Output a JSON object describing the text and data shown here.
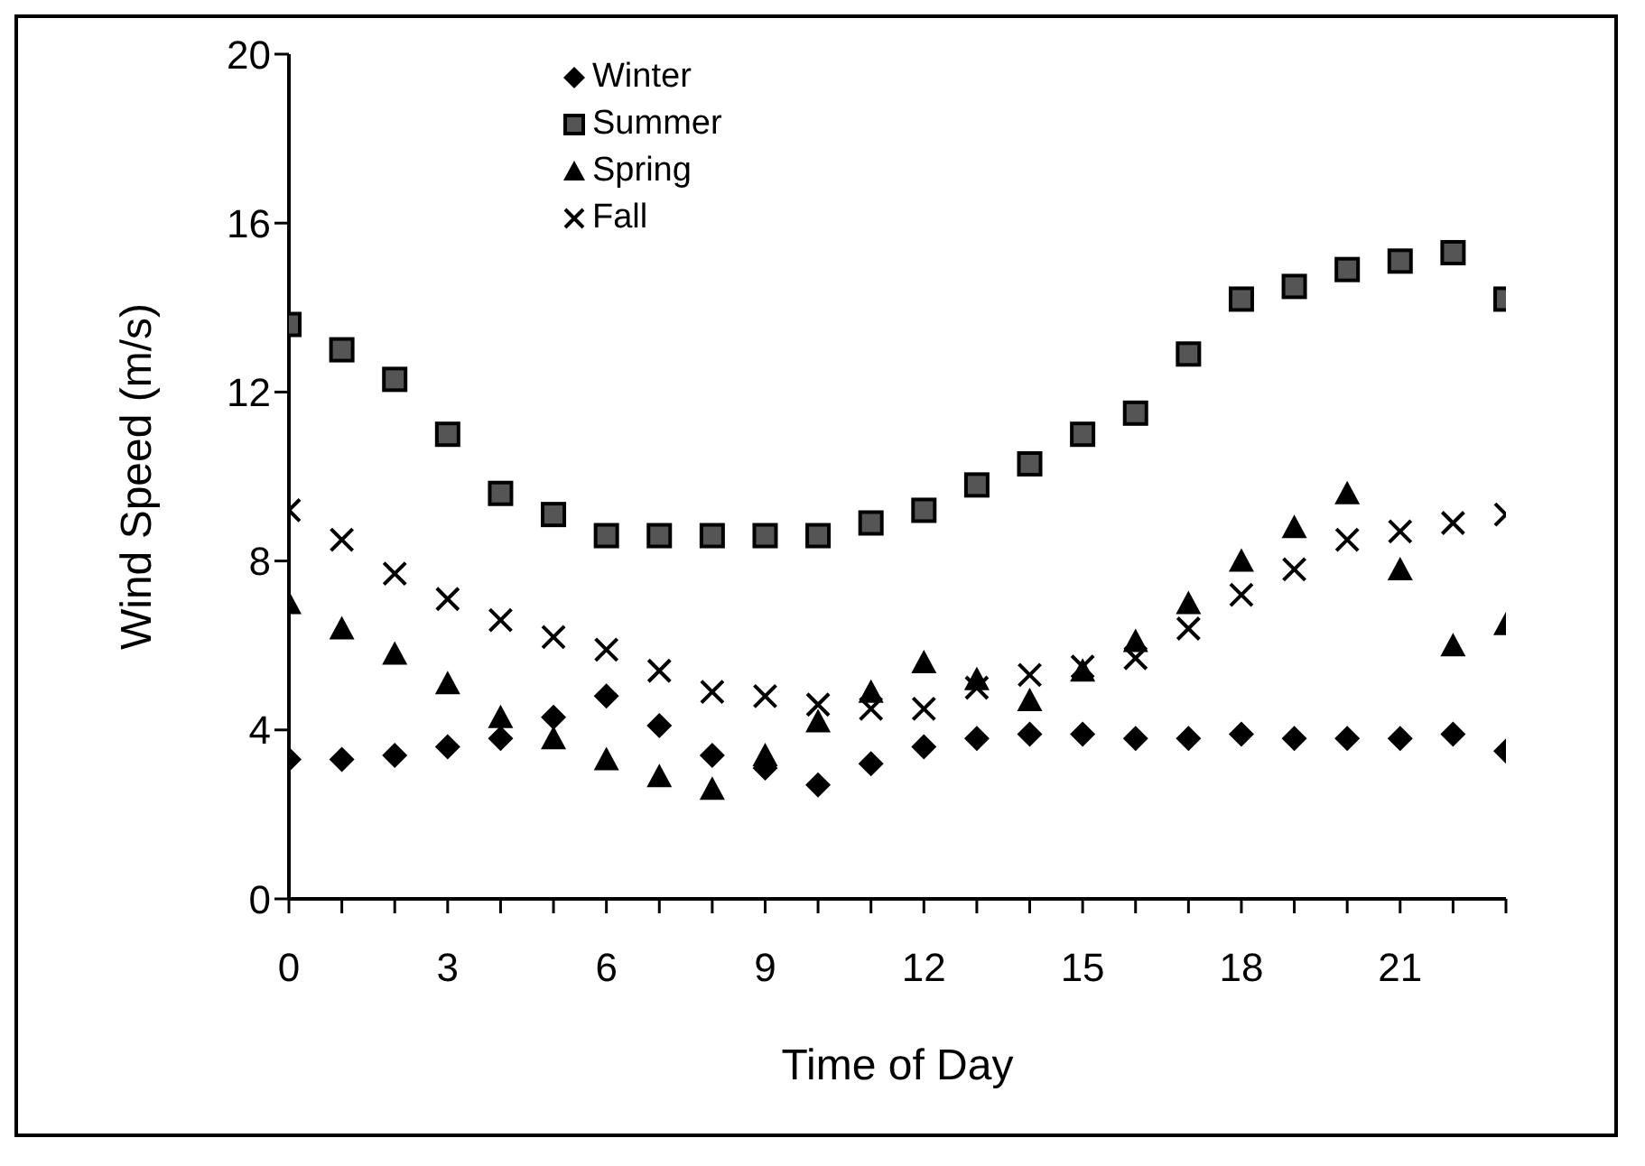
{
  "chart_data": {
    "type": "scatter",
    "xlabel": "Time of Day",
    "ylabel": "Wind Speed (m/s)",
    "x": [
      0,
      1,
      2,
      3,
      4,
      5,
      6,
      7,
      8,
      9,
      10,
      11,
      12,
      13,
      14,
      15,
      16,
      17,
      18,
      19,
      20,
      21,
      22,
      23
    ],
    "series": [
      {
        "name": "Winter",
        "color": "#000000",
        "marker": "diamond",
        "values": [
          3.3,
          3.3,
          3.4,
          3.6,
          3.8,
          4.3,
          4.8,
          4.1,
          3.4,
          3.1,
          2.7,
          3.2,
          3.6,
          3.8,
          3.9,
          3.9,
          3.8,
          3.8,
          3.9,
          3.8,
          3.8,
          3.8,
          3.9,
          3.5
        ]
      },
      {
        "name": "Summer",
        "color": "#555555",
        "marker": "square",
        "values": [
          13.6,
          13.0,
          12.3,
          11.0,
          9.6,
          9.1,
          8.6,
          8.6,
          8.6,
          8.6,
          8.6,
          8.9,
          9.2,
          9.8,
          10.3,
          11.0,
          11.5,
          12.9,
          14.2,
          14.5,
          14.9,
          15.1,
          15.3,
          14.2
        ]
      },
      {
        "name": "Spring",
        "color": "#000000",
        "marker": "triangle",
        "values": [
          7.0,
          6.4,
          5.8,
          5.1,
          4.3,
          3.8,
          3.3,
          2.9,
          2.6,
          3.4,
          4.2,
          4.9,
          5.6,
          5.2,
          4.7,
          5.4,
          6.1,
          7.0,
          8.0,
          8.8,
          9.6,
          7.8,
          6.0,
          6.5
        ]
      },
      {
        "name": "Fall",
        "color": "#000000",
        "marker": "cross",
        "values": [
          9.2,
          8.5,
          7.7,
          7.1,
          6.6,
          6.2,
          5.9,
          5.4,
          4.9,
          4.8,
          4.6,
          4.5,
          4.5,
          5.0,
          5.3,
          5.5,
          5.7,
          6.4,
          7.2,
          7.8,
          8.5,
          8.7,
          8.9,
          9.1
        ]
      }
    ],
    "xlim": [
      0,
      23
    ],
    "xticks": [
      0,
      {
        "value": 1,
        "label": null
      },
      {
        "value": 2,
        "label": null
      },
      3,
      {
        "value": 4,
        "label": null
      },
      {
        "value": 5,
        "label": null
      },
      6,
      {
        "value": 7,
        "label": null
      },
      {
        "value": 8,
        "label": null
      },
      9,
      {
        "value": 10,
        "label": null
      },
      {
        "value": 11,
        "label": null
      },
      12,
      {
        "value": 13,
        "label": null
      },
      {
        "value": 14,
        "label": null
      },
      15,
      {
        "value": 16,
        "label": null
      },
      {
        "value": 17,
        "label": null
      },
      18,
      {
        "value": 19,
        "label": null
      },
      {
        "value": 20,
        "label": null
      },
      21,
      {
        "value": 22,
        "label": null
      },
      {
        "value": 23,
        "label": null
      }
    ],
    "ylim": [
      0,
      20
    ],
    "yticks": [
      0,
      4,
      8,
      12,
      16,
      20
    ],
    "grid": false,
    "legend": "top"
  }
}
